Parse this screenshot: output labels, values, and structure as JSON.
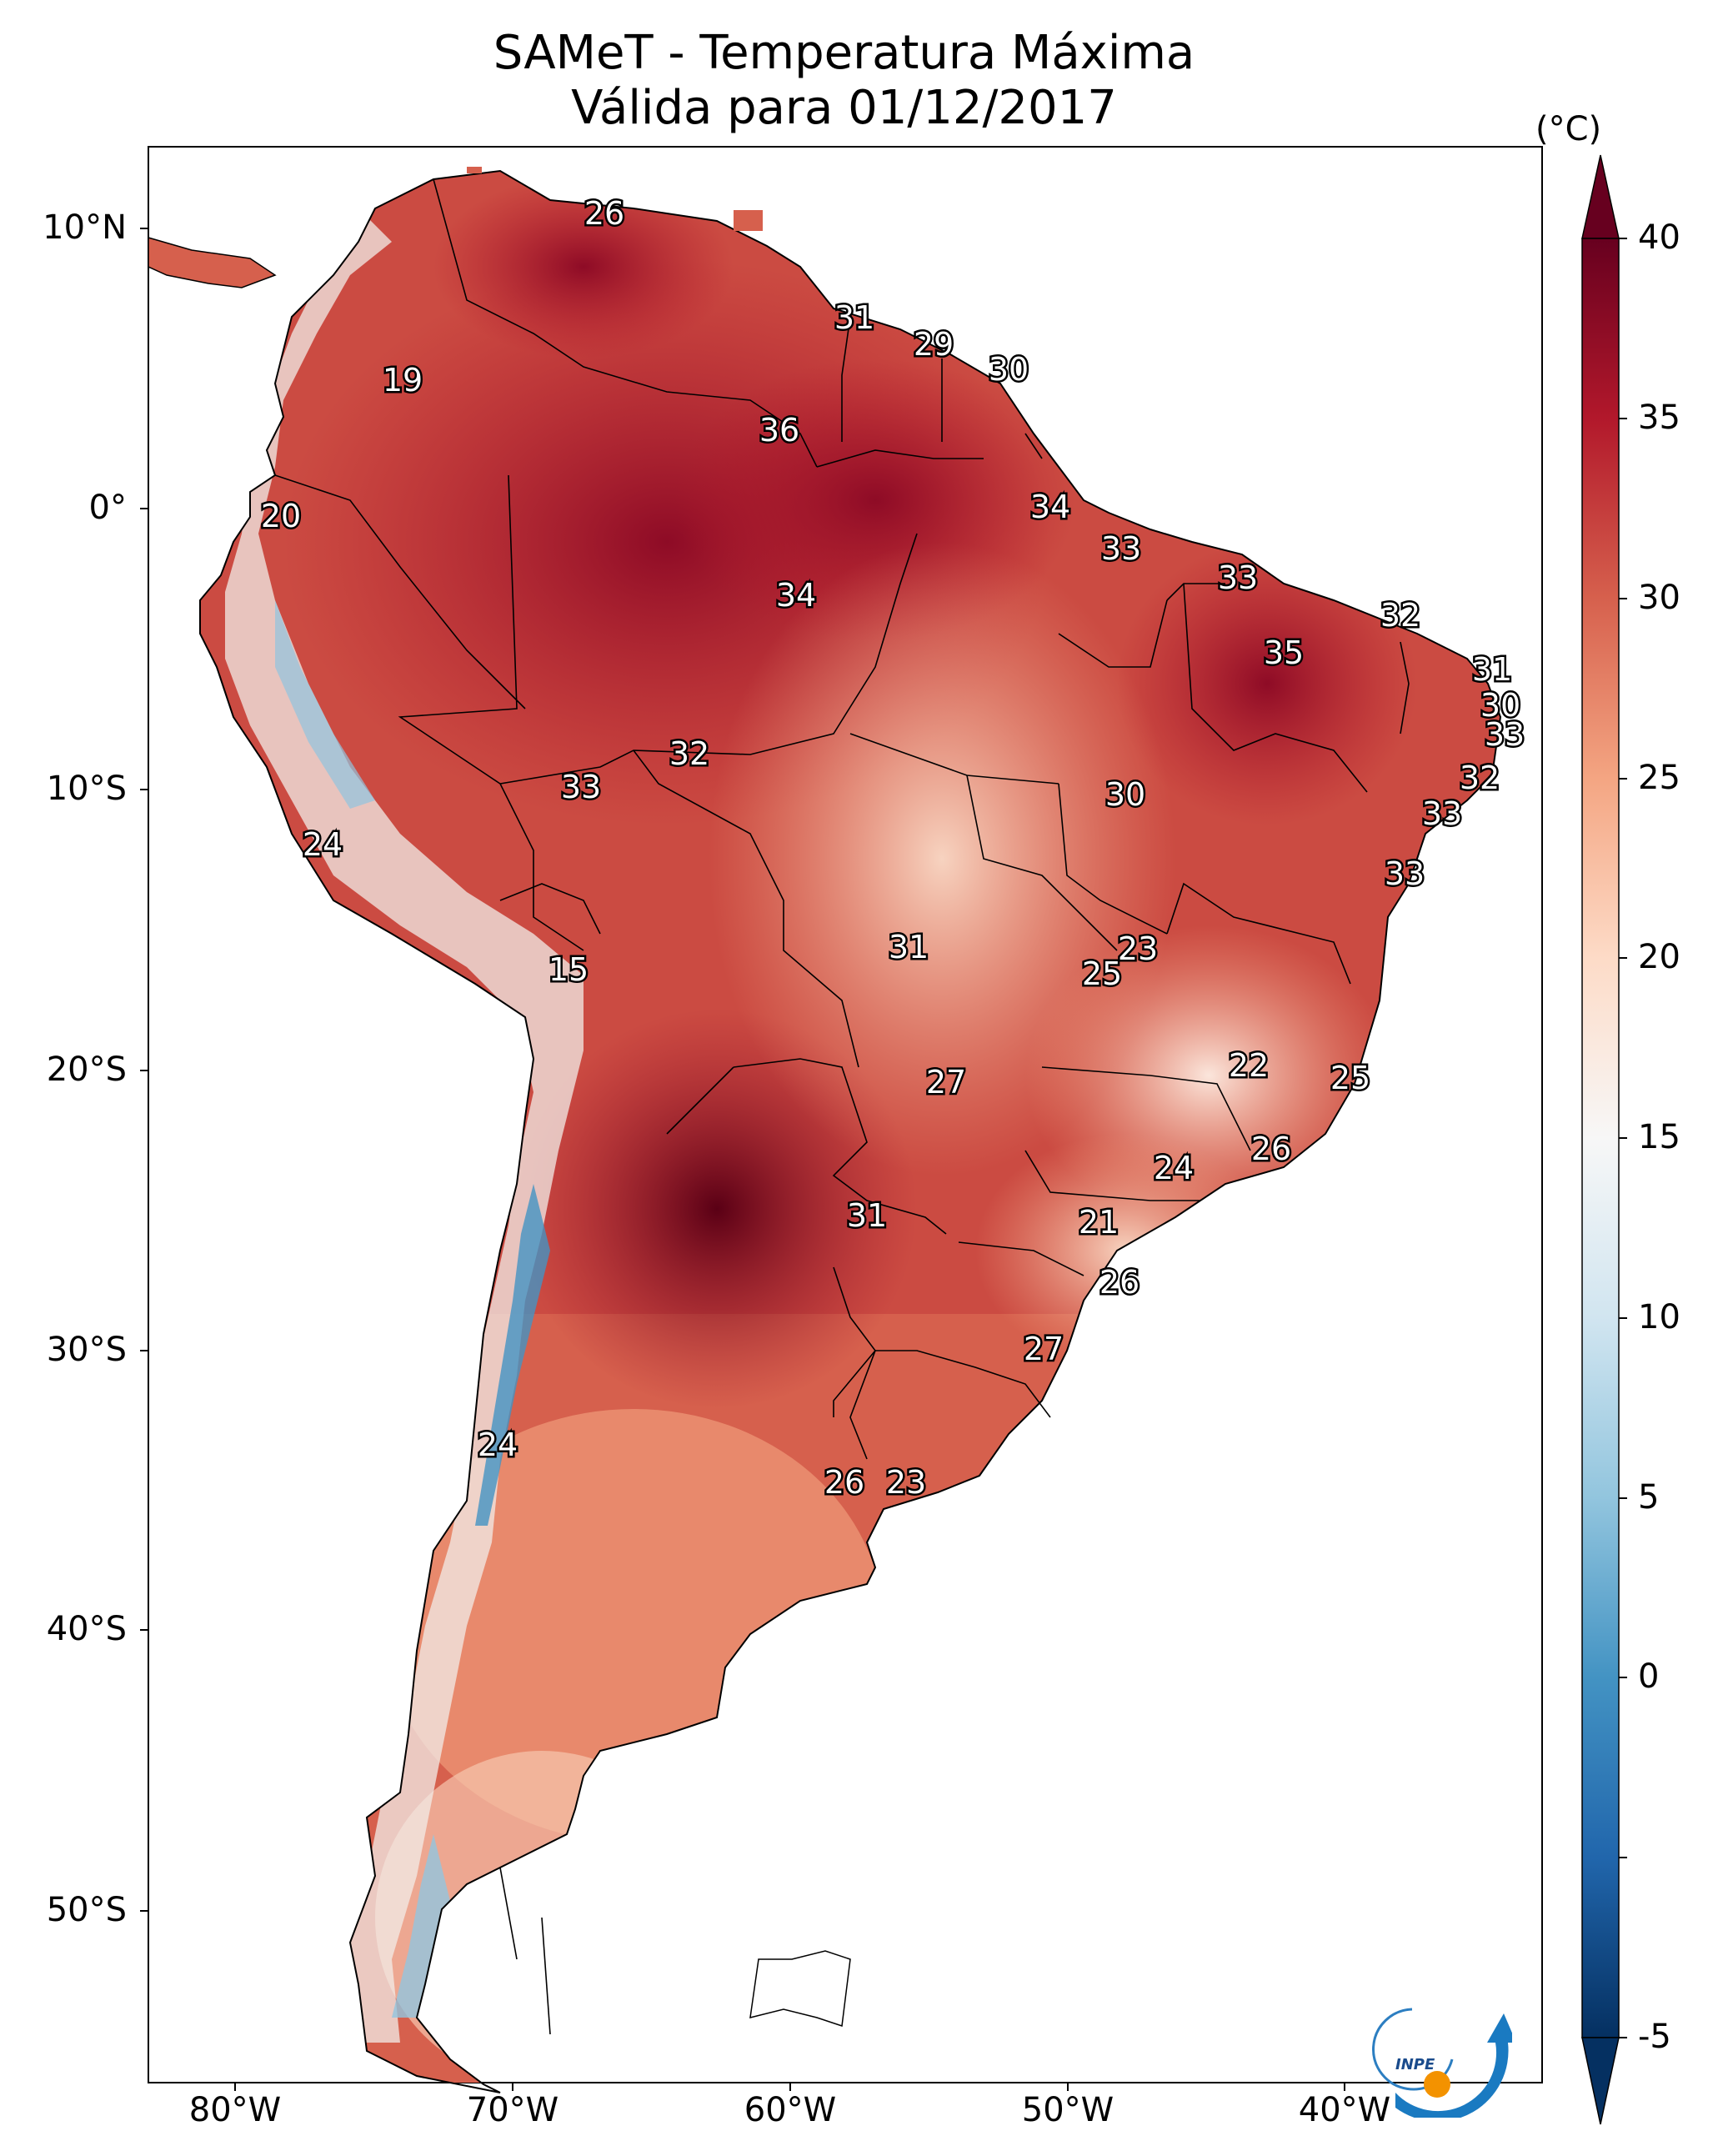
{
  "title": {
    "line1": "SAMeT - Temperatura Máxima",
    "line2": "Válida para 01/12/2017"
  },
  "colorbar": {
    "unit": "(°C)",
    "ticks": [
      "40",
      "35",
      "30",
      "25",
      "20",
      "15",
      "10",
      "5",
      "0",
      "-5"
    ],
    "colors": [
      "#053061",
      "#2166ac",
      "#4393c3",
      "#92c5de",
      "#d1e5f0",
      "#f7f7f7",
      "#fddbc7",
      "#f4a582",
      "#d6604d",
      "#b2182b",
      "#67001f"
    ]
  },
  "axes": {
    "lat_labels": [
      "10°N",
      "0°",
      "10°S",
      "20°S",
      "30°S",
      "40°S",
      "50°S"
    ],
    "lon_labels": [
      "80°W",
      "70°W",
      "60°W",
      "50°W",
      "40°W"
    ]
  },
  "map_labels": [
    {
      "text": "26"
    },
    {
      "text": "19"
    },
    {
      "text": "31"
    },
    {
      "text": "29"
    },
    {
      "text": "30"
    },
    {
      "text": "36"
    },
    {
      "text": "20"
    },
    {
      "text": "34"
    },
    {
      "text": "33"
    },
    {
      "text": "34"
    },
    {
      "text": "33"
    },
    {
      "text": "32"
    },
    {
      "text": "35"
    },
    {
      "text": "31"
    },
    {
      "text": "30"
    },
    {
      "text": "33"
    },
    {
      "text": "32"
    },
    {
      "text": "33"
    },
    {
      "text": "32"
    },
    {
      "text": "30"
    },
    {
      "text": "33"
    },
    {
      "text": "24"
    },
    {
      "text": "23"
    },
    {
      "text": "25"
    },
    {
      "text": "31"
    },
    {
      "text": "15"
    },
    {
      "text": "22"
    },
    {
      "text": "25"
    },
    {
      "text": "27"
    },
    {
      "text": "26"
    },
    {
      "text": "24"
    },
    {
      "text": "31"
    },
    {
      "text": "21"
    },
    {
      "text": "26"
    },
    {
      "text": "27"
    },
    {
      "text": "24"
    },
    {
      "text": "26"
    },
    {
      "text": "23"
    },
    {
      "text": "33"
    }
  ],
  "logo": {
    "text": "INPE"
  }
}
